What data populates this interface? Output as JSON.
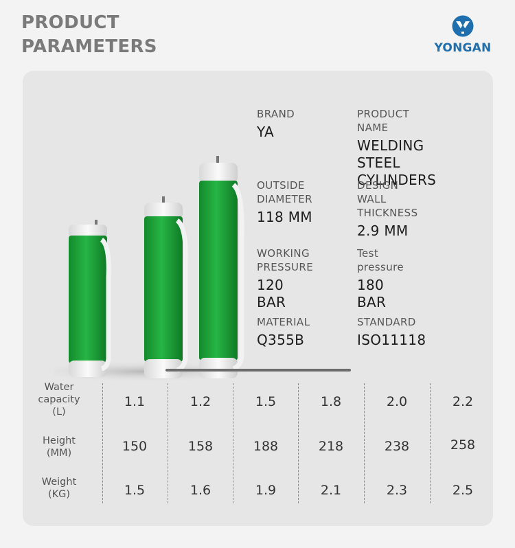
{
  "header": {
    "title_line1": "PRODUCT",
    "title_line2": "PARAMETERS"
  },
  "brand_logo": {
    "text": "YONGAN",
    "icon": "yongan-logo-icon",
    "color": "#1f6fae"
  },
  "colors": {
    "cylinder_green": "#1fa23a",
    "cylinder_cap": "#efefef",
    "card_background": "#e6e6e6"
  },
  "specs": [
    {
      "label": "BRAND",
      "value": "YA"
    },
    {
      "label": "PRODUCT NAME",
      "value": "WELDING STEEL\nCYLINDERS"
    },
    {
      "label": "OUTSIDE\nDIAMETER",
      "value": "118 MM"
    },
    {
      "label": "DESIGN\nWALL THICKNESS",
      "value": "2.9 MM"
    },
    {
      "label": "WORKING\nPRESSURE",
      "value": "120 BAR"
    },
    {
      "label": "Test\npressure",
      "value": "180 BAR"
    },
    {
      "label": "MATERIAL",
      "value": "Q355B"
    },
    {
      "label": "STANDARD",
      "value": "ISO11118"
    }
  ],
  "table": {
    "rows": [
      {
        "label": "Water\ncapacity\n(L)",
        "values": [
          "1.1",
          "1.2",
          "1.5",
          "1.8",
          "2.0",
          "2.2"
        ]
      },
      {
        "label": "Height\n(MM)",
        "values": [
          "150",
          "158",
          "188",
          "218",
          "238",
          "258"
        ]
      },
      {
        "label": "Weight\n(KG)",
        "values": [
          "1.5",
          "1.6",
          "1.9",
          "2.1",
          "2.3",
          "2.5"
        ]
      }
    ]
  }
}
